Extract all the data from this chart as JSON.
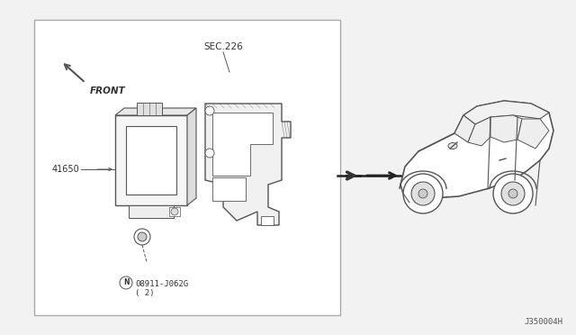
{
  "bg_color": "#f2f2f2",
  "panel_bg": "#ffffff",
  "panel_border_color": "#999999",
  "title_text": "SEC.226",
  "front_text": "FRONT",
  "label_41650": "41650",
  "label_part": "08911-J062G\n( 2)",
  "diagram_id": "J350004H",
  "line_color": "#555555",
  "text_color": "#333333"
}
